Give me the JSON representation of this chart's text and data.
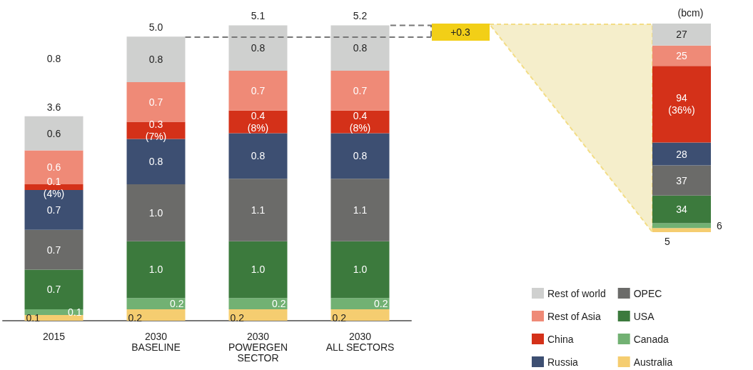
{
  "chart_data": [
    {
      "type": "bar",
      "stacked": true,
      "legend": "bottom right",
      "categories": [
        "2015",
        "2030\nBASELINE",
        "2030\nPOWERGEN\nSECTOR",
        "2030\nALL SECTORS"
      ],
      "series": [
        {
          "name": "Australia",
          "color": "#f5cd70",
          "values": [
            0.1,
            0.2,
            0.2,
            0.2
          ],
          "value_labels": [
            "0.1",
            "0.2",
            "0.2",
            "0.2"
          ]
        },
        {
          "name": "Canada",
          "color": "#72b173",
          "values": [
            0.1,
            0.2,
            0.2,
            0.2
          ],
          "value_labels": [
            "0.1",
            "0.2",
            "0.2",
            "0.2"
          ]
        },
        {
          "name": "USA",
          "color": "#3c7a3d",
          "values": [
            0.7,
            1.0,
            1.0,
            1.0
          ],
          "value_labels": [
            "0.7",
            "1.0",
            "1.0",
            "1.0"
          ]
        },
        {
          "name": "OPEC",
          "color": "#6b6b69",
          "values": [
            0.7,
            1.0,
            1.1,
            1.1
          ],
          "value_labels": [
            "0.7",
            "1.0",
            "1.1",
            "1.1"
          ]
        },
        {
          "name": "Russia",
          "color": "#3d4f72",
          "values": [
            0.7,
            0.8,
            0.8,
            0.8
          ],
          "value_labels": [
            "0.7",
            "0.8",
            "0.8",
            "0.8"
          ]
        },
        {
          "name": "China",
          "color": "#d43119",
          "values": [
            0.1,
            0.3,
            0.4,
            0.4
          ],
          "value_labels": [
            "0.1\n(4%)",
            "0.3\n(7%)",
            "0.4\n(8%)",
            "0.4\n(8%)"
          ]
        },
        {
          "name": "Rest of Asia",
          "color": "#ef8a77",
          "values": [
            0.6,
            0.7,
            0.7,
            0.7
          ],
          "value_labels": [
            "0.6",
            "0.7",
            "0.7",
            "0.7"
          ]
        },
        {
          "name": "Rest of world",
          "color": "#cfd0cf",
          "values": [
            0.6,
            0.8,
            0.8,
            0.8
          ],
          "value_labels": [
            "0.6",
            "0.8",
            "0.8",
            "0.8"
          ]
        }
      ],
      "totals": [
        "3.6",
        "5.0",
        "5.1",
        "5.2"
      ],
      "ref_lines": [
        {
          "axis": "y",
          "value": 5.0,
          "color": "#777777",
          "line_style": "dashed"
        }
      ],
      "annotations": [
        "0.8",
        "+0.3"
      ]
    },
    {
      "type": "bar",
      "stacked": true,
      "title": "(bcm)",
      "categories": [
        null
      ],
      "series": [
        {
          "color": "#f5cd70",
          "values": [
            5
          ],
          "value_labels": [
            "5"
          ]
        },
        {
          "color": "#72b173",
          "values": [
            6
          ],
          "value_labels": [
            "6"
          ]
        },
        {
          "color": "#3c7a3d",
          "values": [
            34
          ],
          "value_labels": [
            "34"
          ]
        },
        {
          "color": "#6b6b69",
          "values": [
            37
          ],
          "value_labels": [
            "37"
          ]
        },
        {
          "color": "#3d4f72",
          "values": [
            28
          ],
          "value_labels": [
            "28"
          ]
        },
        {
          "color": "#d43119",
          "values": [
            94
          ],
          "value_labels": [
            "94\n(36%)"
          ]
        },
        {
          "color": "#ef8a77",
          "values": [
            25
          ],
          "value_labels": [
            "25"
          ]
        },
        {
          "color": "#cfd0cf",
          "values": [
            27
          ],
          "value_labels": [
            "27"
          ]
        }
      ]
    }
  ]
}
